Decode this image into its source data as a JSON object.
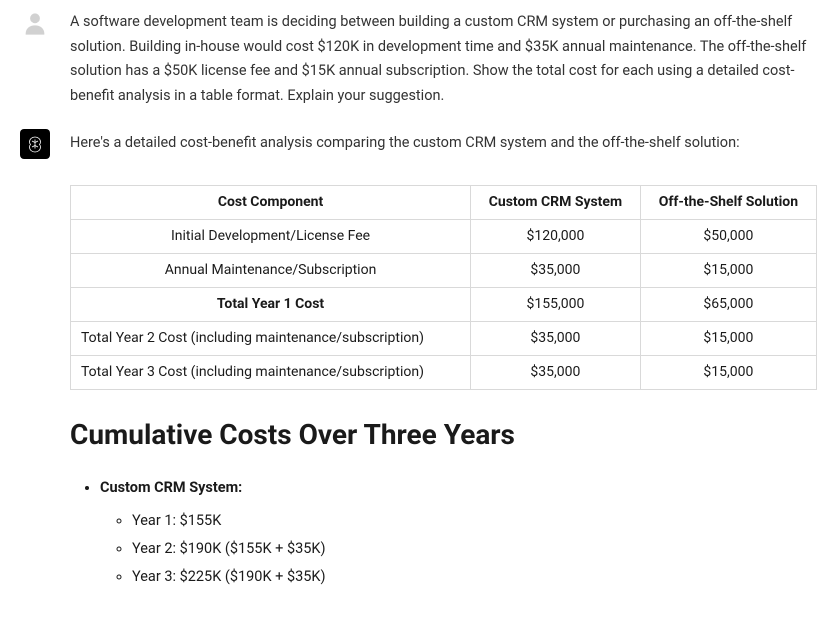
{
  "user": {
    "prompt": "A software development team is deciding between building a custom CRM system or purchasing an off-the-shelf solution. Building in-house would cost $120K in development time and $35K annual maintenance. The off-the-shelf solution has a $50K license fee and $15K annual subscription. Show the total cost for each using a detailed cost-benefit analysis in a table format. Explain your suggestion."
  },
  "assistant": {
    "intro": "Here's a detailed cost-benefit analysis comparing the custom CRM system and the off-the-shelf solution:",
    "table": {
      "headers": {
        "col1": "Cost Component",
        "col2": "Custom CRM System",
        "col3": "Off-the-Shelf Solution"
      },
      "rows": [
        {
          "label": "Initial Development/License Fee",
          "custom": "$120,000",
          "ots": "$50,000",
          "bold": false,
          "left": false
        },
        {
          "label": "Annual Maintenance/Subscription",
          "custom": "$35,000",
          "ots": "$15,000",
          "bold": false,
          "left": false
        },
        {
          "label": "Total Year 1 Cost",
          "custom": "$155,000",
          "ots": "$65,000",
          "bold": true,
          "left": false
        },
        {
          "label": "Total Year 2 Cost (including maintenance/subscription)",
          "custom": "$35,000",
          "ots": "$15,000",
          "bold": false,
          "left": true
        },
        {
          "label": "Total Year 3 Cost (including maintenance/subscription)",
          "custom": "$35,000",
          "ots": "$15,000",
          "bold": false,
          "left": true
        }
      ]
    },
    "heading": "Cumulative Costs Over Three Years",
    "cumulative": {
      "custom_label": "Custom CRM System:",
      "custom_years": [
        "Year 1: $155K",
        "Year 2: $190K ($155K + $35K)",
        "Year 3: $225K ($190K + $35K)"
      ]
    }
  }
}
